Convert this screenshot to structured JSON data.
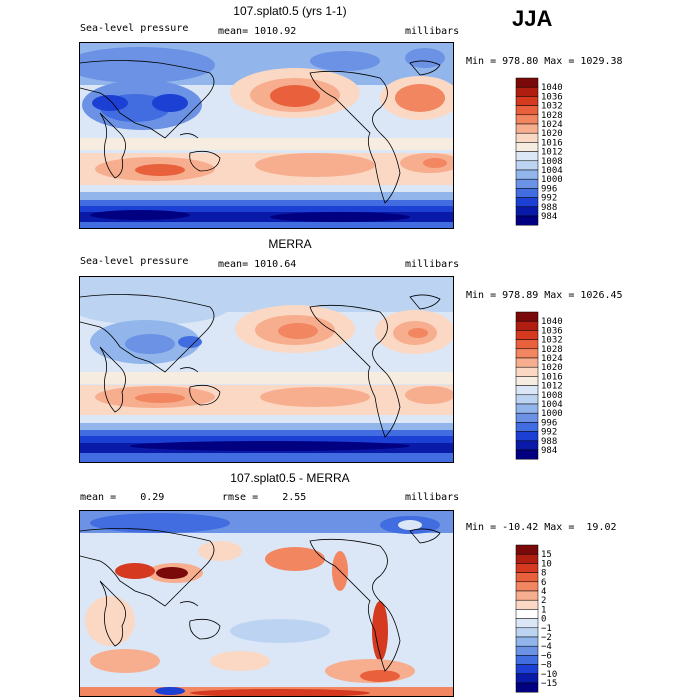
{
  "season": "JJA",
  "panels": [
    {
      "id": "top",
      "title": "107.splat0.5 (yrs 1-1)",
      "left_label": "Sea-level pressure",
      "center_label": "mean= 1010.92",
      "right_label": "millibars",
      "minmax": "Min = 978.80 Max = 1029.38",
      "levels": [
        "1040",
        "1036",
        "1032",
        "1028",
        "1024",
        "1020",
        "1016",
        "1012",
        "1008",
        "1004",
        "1000",
        "996",
        "992",
        "988",
        "984"
      ]
    },
    {
      "id": "middle",
      "title": "MERRA",
      "left_label": "Sea-level pressure",
      "center_label": "mean= 1010.64",
      "right_label": "millibars",
      "minmax": "Min = 978.89 Max = 1026.45",
      "levels": [
        "1040",
        "1036",
        "1032",
        "1028",
        "1024",
        "1020",
        "1016",
        "1012",
        "1008",
        "1004",
        "1000",
        "996",
        "992",
        "988",
        "984"
      ]
    },
    {
      "id": "bottom",
      "title": "107.splat0.5 - MERRA",
      "left_label": "mean =    0.29",
      "center_label": "rmse =    2.55",
      "right_label": "millibars",
      "minmax": "Min = -10.42 Max =  19.02",
      "levels": [
        "15",
        "10",
        "8",
        "6",
        "4",
        "2",
        "1",
        "0",
        "−1",
        "−2",
        "−4",
        "−6",
        "−8",
        "−10",
        "−15"
      ]
    }
  ],
  "colors": {
    "abs_scale": [
      "#7a0a0a",
      "#b01e12",
      "#d5391f",
      "#e8603c",
      "#f28660",
      "#f7ae8f",
      "#fbd8c4",
      "#f6ecdf",
      "#dbe7f6",
      "#bcd4f2",
      "#92b6ec",
      "#6b92e4",
      "#416de0",
      "#1c3fd4",
      "#0a1aa8",
      "#000080"
    ],
    "diff_scale": [
      "#7a0a0a",
      "#b01e12",
      "#d5391f",
      "#e8603c",
      "#f28660",
      "#f7ae8f",
      "#fbd8c4",
      "#ffffff",
      "#dbe7f6",
      "#bcd4f2",
      "#92b6ec",
      "#6b92e4",
      "#416de0",
      "#1c3fd4",
      "#0a1aa8",
      "#000080"
    ]
  }
}
